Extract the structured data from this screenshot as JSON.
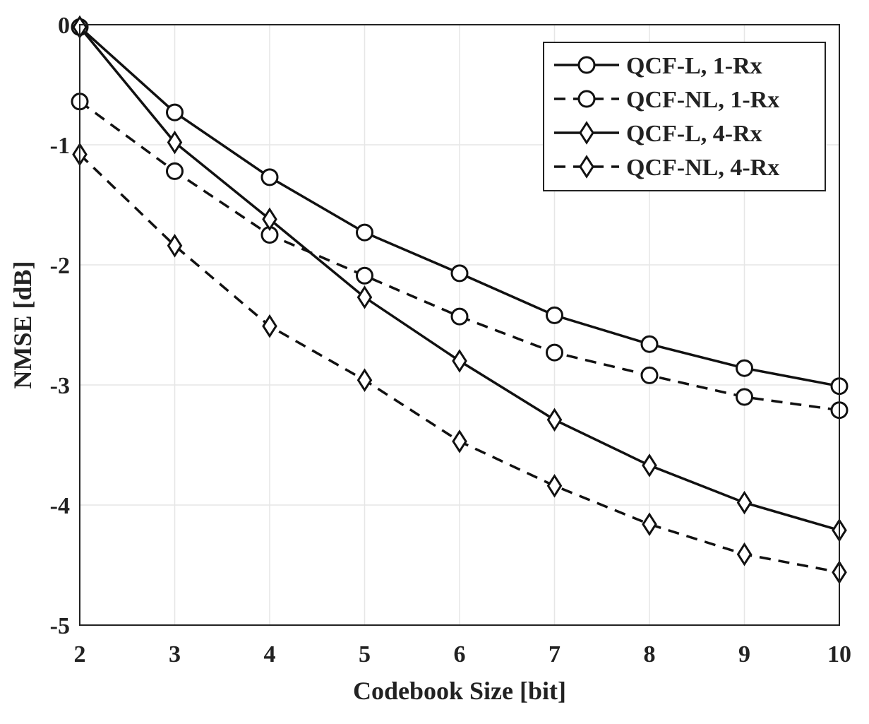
{
  "chart_data": {
    "type": "line",
    "title": "",
    "xlabel": "Codebook Size [bit]",
    "ylabel": "NMSE [dB]",
    "xlim": [
      2,
      10
    ],
    "ylim": [
      -5,
      0
    ],
    "xticks": [
      2,
      3,
      4,
      5,
      6,
      7,
      8,
      9,
      10
    ],
    "yticks": [
      0,
      -1,
      -2,
      -3,
      -4,
      -5
    ],
    "grid": true,
    "legend_position": "top-right",
    "x": [
      2,
      3,
      4,
      5,
      6,
      7,
      8,
      9,
      10
    ],
    "series": [
      {
        "name": "QCF-L, 1-Rx",
        "line_style": "solid",
        "marker": "circle",
        "values": [
          -0.02,
          -0.73,
          -1.27,
          -1.73,
          -2.07,
          -2.42,
          -2.66,
          -2.86,
          -3.01
        ]
      },
      {
        "name": "QCF-NL, 1-Rx",
        "line_style": "dashed",
        "marker": "circle",
        "values": [
          -0.64,
          -1.22,
          -1.75,
          -2.09,
          -2.43,
          -2.73,
          -2.92,
          -3.1,
          -3.21
        ]
      },
      {
        "name": "QCF-L, 4-Rx",
        "line_style": "solid",
        "marker": "diamond",
        "values": [
          -0.02,
          -0.98,
          -1.62,
          -2.27,
          -2.8,
          -3.29,
          -3.67,
          -3.98,
          -4.21
        ]
      },
      {
        "name": "QCF-NL, 4-Rx",
        "line_style": "dashed",
        "marker": "diamond",
        "values": [
          -1.08,
          -1.84,
          -2.51,
          -2.96,
          -3.47,
          -3.84,
          -4.16,
          -4.41,
          -4.56
        ]
      }
    ]
  }
}
